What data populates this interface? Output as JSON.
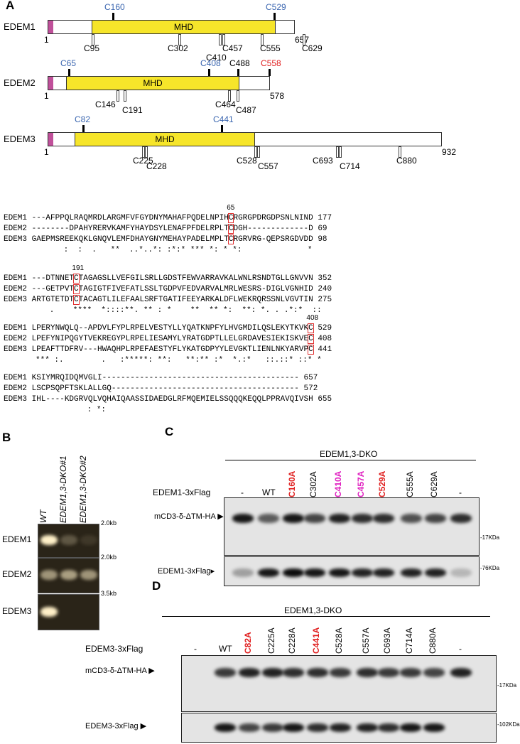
{
  "panels": {
    "a": "A",
    "b": "B",
    "c": "C",
    "d": "D"
  },
  "colors": {
    "domain": "#f6e52a",
    "signal": "#c0509a",
    "blue": "#3b66b0",
    "red": "#e02020",
    "magenta": "#e020c0"
  },
  "domains": [
    {
      "name": "EDEM1",
      "domain_label": "MHD",
      "start": "1",
      "end": "657",
      "above": [
        {
          "label": "C160",
          "color": "blue"
        },
        {
          "label": "C529",
          "color": "blue"
        }
      ],
      "below": [
        "C95",
        "C302",
        "C410",
        "C457",
        "C555",
        "C629"
      ]
    },
    {
      "name": "EDEM2",
      "domain_label": "MHD",
      "start": "1",
      "end": "578",
      "above": [
        {
          "label": "C65",
          "color": "blue"
        },
        {
          "label": "C408",
          "color": "blue"
        },
        {
          "label": "C488",
          "color": "black"
        },
        {
          "label": "C558",
          "color": "red"
        }
      ],
      "below": [
        "C146",
        "C191",
        "C464",
        "C487"
      ]
    },
    {
      "name": "EDEM3",
      "domain_label": "MHD",
      "start": "1",
      "end": "932",
      "above": [
        {
          "label": "C82",
          "color": "blue"
        },
        {
          "label": "C441",
          "color": "blue"
        }
      ],
      "below": [
        "C225",
        "C228",
        "C528",
        "C557",
        "C693",
        "C714",
        "C880"
      ]
    }
  ],
  "alignment": [
    {
      "marker": "65",
      "rows": [
        {
          "name": "EDEM1",
          "pre": "---AFPPQLRAQMRDLARGMFVFGYDNYMAHAFPQDELNPIH",
          "c": "C",
          "post": "RGRGPDRGDPSNLNIND",
          "end": "177"
        },
        {
          "name": "EDEM2",
          "pre": "--------DPAHYRERVKAMFYHAYDSYLENAFPFDELRPLT",
          "c": "C",
          "post": "DGH-------------D",
          "end": "69"
        },
        {
          "name": "EDEM3",
          "pre": "GAEPMSREEKQKLGNQVLEMFDHAYGNYMEHAYPADELMPLT",
          "c": "C",
          "post": "RGRVRG-QEPSRGDVDD",
          "end": "98"
        }
      ],
      "consensus": "      :  :  .   **  ..*..*: :*:* *** *: * *:              *"
    },
    {
      "marker": "191",
      "rows": [
        {
          "name": "EDEM1",
          "pre": "---DTNNET",
          "c": "C",
          "post": "TAGAGSLLVEFGILSRLLGDSTFEWVARRAVKALWNLRSNDTGLLGNVVN",
          "end": "352"
        },
        {
          "name": "EDEM2",
          "pre": "---GETPVT",
          "c": "C",
          "post": "TAGIGTFIVEFATLSSLTGDPVFEDVARVALMRLWESRS-DIGLVGNHID",
          "end": "240"
        },
        {
          "name": "EDEM3",
          "pre": "ARTGTETDT",
          "c": "C",
          "post": "TACAGTLILEFAALSRFTGATIFEEYARKALDFLWEKRQRSSNLVGVTIN",
          "end": "275"
        }
      ],
      "consensus": "   .    ****  *::::**. ** : *    **  ** *:  **: *. . .*:*  ::"
    },
    {
      "marker": "408",
      "rows": [
        {
          "name": "EDEM1",
          "pre": "LPERYNWQLQ--APDVLFYPLRPELVESTYLLYQATKNPFYLHVGMDILQSLEKYTKVK",
          "c": "C",
          "post": "",
          "end": "529"
        },
        {
          "name": "EDEM2",
          "pre": "LPEFYNIPQGYTVEKREGYPLRPELIESAMYLYRATGDPTLLELGRDAVESIEKISKVE",
          "c": "C",
          "post": "",
          "end": "408"
        },
        {
          "name": "EDEM3",
          "pre": "LPEAFTTDFRV---HWAQHPLRPEFAESTYFLYKATGDPYYLEVGKTLIENLNKYARVP",
          "c": "C",
          "post": "",
          "end": "441"
        }
      ],
      "consensus": "*** :.        .   :*****: **:   **:** :*  *.:*   ::.::* ::* *"
    },
    {
      "marker": "",
      "rows": [
        {
          "name": "EDEM1",
          "pre": "KSIYMRQIDQMVGLI------------------------------------------",
          "c": "",
          "post": "",
          "end": "657"
        },
        {
          "name": "EDEM2",
          "pre": "LSCPSQPFTSKLALLGQ----------------------------------------",
          "c": "",
          "post": "",
          "end": "572"
        },
        {
          "name": "EDEM3",
          "pre": "IHL----KDGRVQLVQHAIQAASSIDAEDGLRFMQEMIELSSQQQKEQQLPPRAVQIVSH",
          "c": "",
          "post": "",
          "end": "655"
        }
      ],
      "consensus": "           : *:"
    }
  ],
  "panel_b": {
    "lanes": [
      "WT",
      "EDEM1,3-DKO#1",
      "EDEM1,3-DKO#2"
    ],
    "rows": [
      {
        "label": "EDEM1",
        "marker": "2.0kb"
      },
      {
        "label": "EDEM2",
        "marker": "2.0kb"
      },
      {
        "label": "EDEM3",
        "marker": "3.5kb"
      }
    ]
  },
  "panel_c": {
    "header": "EDEM1,3-DKO",
    "row_label": "EDEM1-3xFlag",
    "lanes": [
      {
        "label": "-",
        "color": "black"
      },
      {
        "label": "WT",
        "color": "black"
      },
      {
        "label": "C160A",
        "color": "red"
      },
      {
        "label": "C302A",
        "color": "black"
      },
      {
        "label": "C410A",
        "color": "magenta"
      },
      {
        "label": "C457A",
        "color": "magenta"
      },
      {
        "label": "C529A",
        "color": "red"
      },
      {
        "label": "C555A",
        "color": "black"
      },
      {
        "label": "C629A",
        "color": "black"
      },
      {
        "label": "-",
        "color": "black"
      }
    ],
    "blots": [
      {
        "label": "mCD3-δ-ΔTM-HA ▶",
        "marker": "-17KDa"
      },
      {
        "label": "EDEM1-3xFlag▸",
        "marker": "-76KDa"
      }
    ]
  },
  "panel_d": {
    "header": "EDEM1,3-DKO",
    "row_label": "EDEM3-3xFlag",
    "lanes": [
      {
        "label": "-",
        "color": "black"
      },
      {
        "label": "WT",
        "color": "black"
      },
      {
        "label": "C82A",
        "color": "red"
      },
      {
        "label": "C225A",
        "color": "black"
      },
      {
        "label": "C228A",
        "color": "black"
      },
      {
        "label": "C441A",
        "color": "red"
      },
      {
        "label": "C528A",
        "color": "black"
      },
      {
        "label": "C557A",
        "color": "black"
      },
      {
        "label": "C693A",
        "color": "black"
      },
      {
        "label": "C714A",
        "color": "black"
      },
      {
        "label": "C880A",
        "color": "black"
      },
      {
        "label": "-",
        "color": "black"
      }
    ],
    "blots": [
      {
        "label": "mCD3-δ-ΔTM-HA ▶",
        "marker": "-17KDa"
      },
      {
        "label": "EDEM3-3xFlag ▶",
        "marker": "-102KDa"
      }
    ]
  }
}
